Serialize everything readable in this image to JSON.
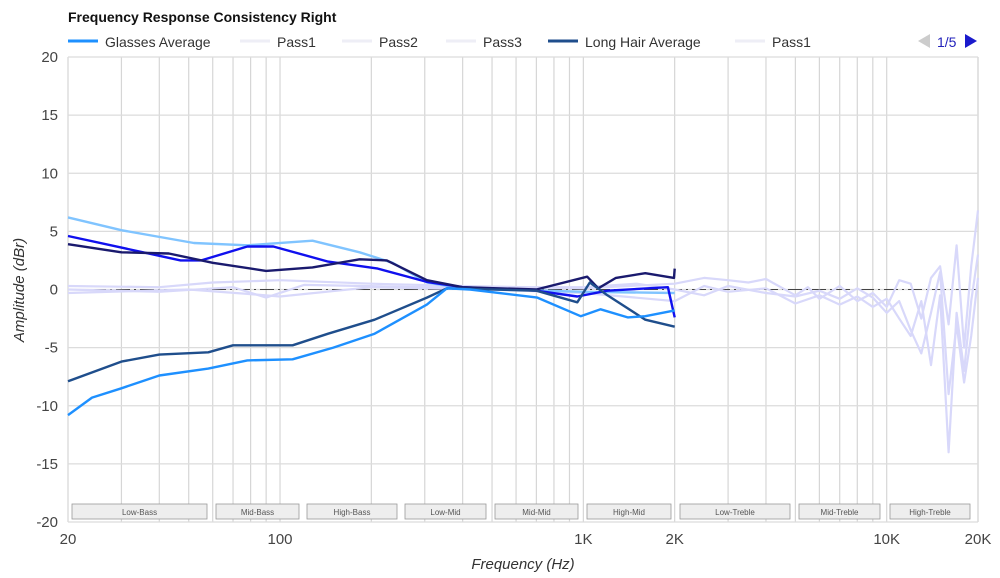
{
  "chart_data": {
    "type": "line",
    "title": "Frequency Response Consistency Right",
    "xlabel": "Frequency (Hz)",
    "ylabel": "Amplitude (dBr)",
    "x_scale": "log",
    "xlim": [
      20,
      20000
    ],
    "ylim": [
      -20,
      20
    ],
    "grid": true,
    "x_ticks": [
      {
        "v": 20,
        "label": "20"
      },
      {
        "v": 100,
        "label": "100"
      },
      {
        "v": 1000,
        "label": "1K"
      },
      {
        "v": 2000,
        "label": "2K"
      },
      {
        "v": 10000,
        "label": "10K"
      },
      {
        "v": 20000,
        "label": "20K"
      }
    ],
    "y_ticks": [
      20,
      15,
      10,
      5,
      0,
      -5,
      -10,
      -15,
      -20
    ],
    "bands": [
      "Low-Bass",
      "Mid-Bass",
      "High-Bass",
      "Low-Mid",
      "Mid-Mid",
      "High-Mid",
      "Low-Treble",
      "Mid-Treble",
      "High-Treble"
    ],
    "legend": {
      "placement": "top",
      "items": [
        {
          "name": "Glasses Average",
          "color": "#1e90ff"
        },
        {
          "name": "Pass1",
          "color": "#eeeef6"
        },
        {
          "name": "Pass2",
          "color": "#eeeef6"
        },
        {
          "name": "Pass3",
          "color": "#eeeef6"
        },
        {
          "name": "Long Hair Average",
          "color": "#1f4e8c"
        },
        {
          "name": "Pass1",
          "color": "#eeeef6"
        }
      ],
      "page": "1/5"
    },
    "series": [
      {
        "color": "#d8d8fa",
        "x": [
          20,
          40,
          60,
          100,
          200,
          400,
          1000,
          2000,
          2500,
          3000,
          3500,
          4000,
          5000,
          5500,
          6000,
          7000,
          8000,
          9000,
          10000,
          11000,
          12000,
          13000,
          14000,
          15000,
          16000,
          17000,
          18000,
          19000,
          20000
        ],
        "y": [
          0.3,
          0.2,
          0.6,
          0.8,
          0.5,
          0.3,
          0.1,
          0.5,
          1.0,
          0.8,
          0.6,
          0.9,
          -0.5,
          0.2,
          -0.8,
          0.3,
          -1.0,
          -0.3,
          -1.5,
          0.8,
          0.5,
          -2.5,
          1.0,
          2.0,
          -3,
          3.8,
          -5,
          2,
          6.8
        ]
      },
      {
        "color": "#d8d8fa",
        "x": [
          20,
          50,
          80,
          100,
          200,
          500,
          1000,
          2000,
          2500,
          3000,
          4000,
          5000,
          6000,
          7000,
          8000,
          9000,
          10000,
          11000,
          12000,
          13000,
          14000,
          15000,
          16000,
          17000,
          18000,
          19000,
          20000
        ],
        "y": [
          -0.3,
          0,
          -0.4,
          -0.6,
          0.2,
          0,
          -0.3,
          -1.0,
          0.3,
          -0.2,
          0.1,
          -1.2,
          -0.5,
          -1.3,
          -0.6,
          -1.5,
          -0.8,
          -2.5,
          -4,
          -1,
          -6.5,
          -0.5,
          -14,
          -2,
          -7,
          -1,
          3
        ]
      },
      {
        "color": "#d8d8fa",
        "x": [
          20,
          40,
          70,
          90,
          120,
          300,
          1000,
          1500,
          2000,
          2500,
          3000,
          4000,
          5000,
          6000,
          7000,
          8000,
          9000,
          10000,
          11000,
          12000,
          13000,
          14000,
          15000,
          16000,
          17000,
          18000,
          19000,
          20000
        ],
        "y": [
          0,
          -0.2,
          0.2,
          -0.7,
          0.4,
          0.2,
          0.2,
          0.5,
          0,
          -0.5,
          0.3,
          -0.3,
          -0.6,
          -0.1,
          -0.8,
          0.1,
          -0.7,
          -2.0,
          -1.0,
          -3.5,
          -5.5,
          -2,
          1.5,
          -9,
          -3,
          -8,
          -4,
          1
        ]
      },
      {
        "color": "#80c4ff",
        "x": [
          20,
          30,
          52,
          78,
          128,
          183,
          235,
          305,
          400,
          1000,
          2000
        ],
        "y": [
          6.2,
          5.1,
          4.0,
          3.8,
          4.2,
          3.2,
          2.3,
          0.6,
          0.1,
          -0.2,
          -0.3
        ]
      },
      {
        "color": "#1010ee",
        "x": [
          20,
          30,
          47,
          55,
          78,
          95,
          144,
          210,
          305,
          400,
          700,
          955,
          1200,
          1900,
          2000
        ],
        "y": [
          4.6,
          3.6,
          2.5,
          2.5,
          3.7,
          3.7,
          2.4,
          1.8,
          0.65,
          0.2,
          -0.1,
          -0.6,
          -0.1,
          0.2,
          -2.4
        ]
      },
      {
        "color": "#1a1a6e",
        "x": [
          20,
          30,
          43,
          60,
          90,
          128,
          183,
          225,
          305,
          400,
          700,
          1030,
          1120,
          1280,
          1600,
          1990,
          2000
        ],
        "y": [
          3.9,
          3.2,
          3.1,
          2.3,
          1.6,
          1.9,
          2.6,
          2.5,
          0.8,
          0.2,
          0,
          1.1,
          0.1,
          1.0,
          1.4,
          1.0,
          1.8
        ]
      },
      {
        "name": "Long Hair Average",
        "color": "#1f4e8c",
        "x": [
          20,
          30,
          40,
          58,
          70,
          110,
          144,
          205,
          305,
          355,
          700,
          955,
          1050,
          1200,
          1600,
          2000
        ],
        "y": [
          -7.9,
          -6.2,
          -5.6,
          -5.4,
          -4.8,
          -4.8,
          -3.8,
          -2.6,
          -0.7,
          0.1,
          -0.1,
          -1.1,
          0.6,
          -0.5,
          -2.6,
          -3.2
        ]
      },
      {
        "name": "Glasses Average",
        "color": "#1e90ff",
        "x": [
          20,
          24,
          30,
          40,
          58,
          78,
          110,
          150,
          205,
          305,
          355,
          423,
          705,
          980,
          1140,
          1400,
          1600,
          2000
        ],
        "y": [
          -10.8,
          -9.3,
          -8.5,
          -7.4,
          -6.8,
          -6.1,
          -6.0,
          -5.0,
          -3.8,
          -1.3,
          0.1,
          0,
          -0.7,
          -2.3,
          -1.7,
          -2.4,
          -2.3,
          -1.8
        ]
      }
    ]
  }
}
